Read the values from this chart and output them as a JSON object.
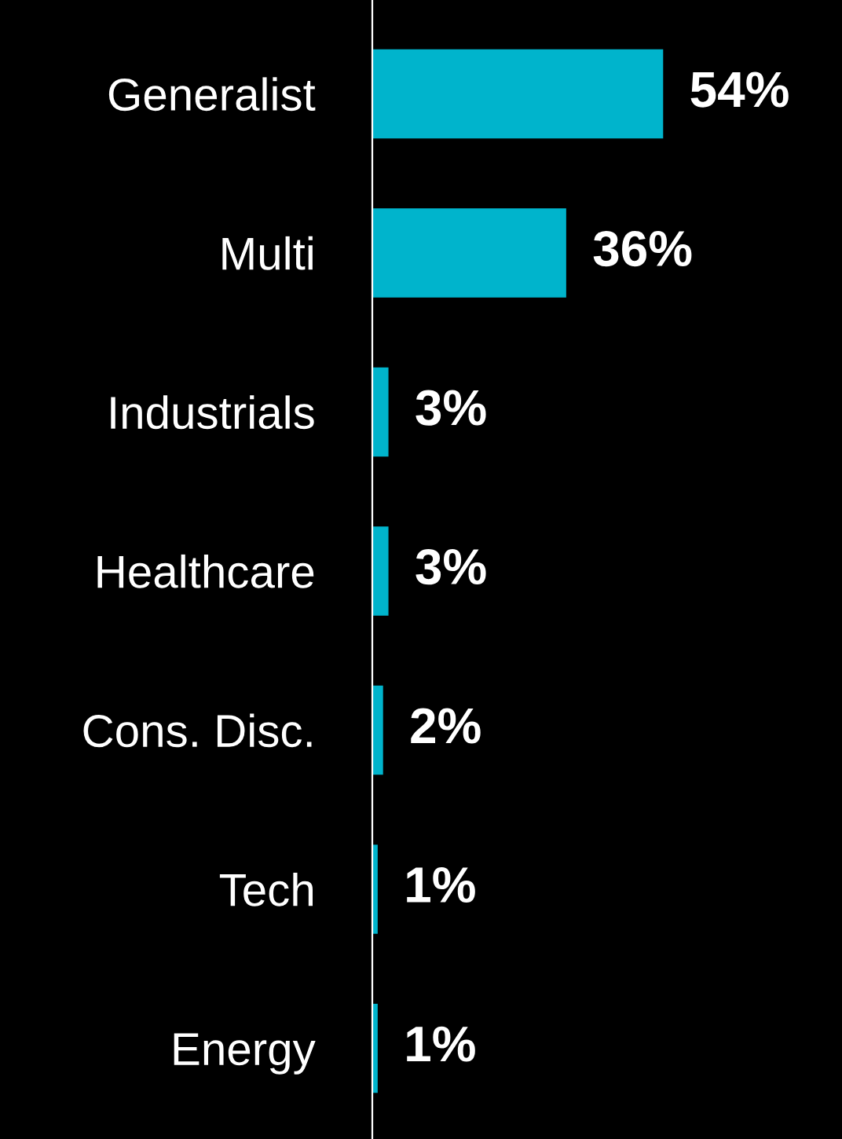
{
  "chart_data": {
    "type": "bar",
    "orientation": "horizontal",
    "categories": [
      "Generalist",
      "Multi",
      "Industrials",
      "Healthcare",
      "Cons. Disc.",
      "Tech",
      "Energy"
    ],
    "values": [
      54,
      36,
      3,
      3,
      2,
      1,
      1
    ],
    "value_labels": [
      "54%",
      "36%",
      "3%",
      "3%",
      "2%",
      "1%",
      "1%"
    ],
    "color": "#00b4cc",
    "relative": false,
    "grid": false,
    "legend": false
  }
}
